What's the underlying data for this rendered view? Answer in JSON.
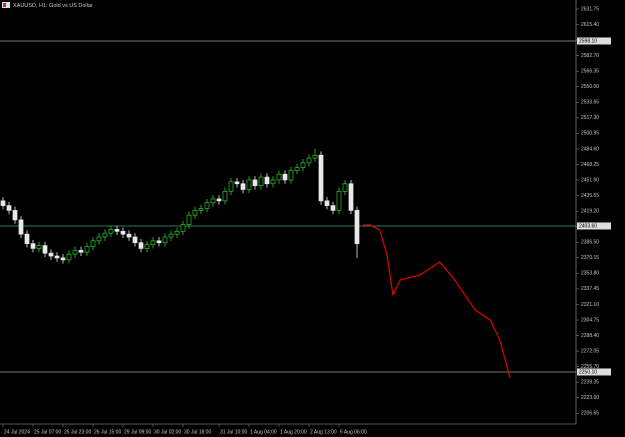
{
  "chart_data": {
    "type": "candlestick",
    "title": "XAUUSD, H1: Gold vs US Dollar",
    "up_color": "#2fc42f",
    "down_color": "#e8e8e8",
    "open": [
      2430,
      2425,
      2420,
      2410,
      2395,
      2385,
      2380,
      2383,
      2375,
      2372,
      2370,
      2368,
      2374,
      2378,
      2376,
      2382,
      2388,
      2392,
      2396,
      2400,
      2398,
      2395,
      2392,
      2386,
      2380,
      2384,
      2388,
      2386,
      2392,
      2395,
      2398,
      2405,
      2415,
      2420,
      2422,
      2428,
      2432,
      2430,
      2440,
      2450,
      2448,
      2442,
      2452,
      2446,
      2455,
      2448,
      2452,
      2458,
      2452,
      2462,
      2465,
      2470,
      2475,
      2478,
      2430,
      2425,
      2420,
      2440,
      2448,
      2420
    ],
    "high": [
      2434,
      2429,
      2424,
      2414,
      2399,
      2389,
      2387,
      2387,
      2379,
      2376,
      2374,
      2378,
      2382,
      2382,
      2386,
      2392,
      2396,
      2400,
      2404,
      2404,
      2402,
      2399,
      2396,
      2390,
      2388,
      2392,
      2392,
      2396,
      2399,
      2402,
      2409,
      2419,
      2424,
      2426,
      2432,
      2436,
      2436,
      2444,
      2454,
      2454,
      2452,
      2456,
      2456,
      2459,
      2459,
      2456,
      2462,
      2462,
      2466,
      2469,
      2474,
      2479,
      2485,
      2482,
      2434,
      2429,
      2444,
      2452,
      2452,
      2424
    ],
    "low": [
      2421,
      2416,
      2406,
      2391,
      2381,
      2376,
      2376,
      2371,
      2368,
      2366,
      2364,
      2364,
      2370,
      2372,
      2372,
      2378,
      2384,
      2388,
      2392,
      2394,
      2391,
      2388,
      2382,
      2376,
      2376,
      2380,
      2382,
      2382,
      2388,
      2391,
      2394,
      2401,
      2411,
      2416,
      2418,
      2424,
      2426,
      2426,
      2436,
      2444,
      2438,
      2438,
      2442,
      2442,
      2444,
      2444,
      2448,
      2448,
      2448,
      2458,
      2461,
      2466,
      2471,
      2426,
      2421,
      2416,
      2416,
      2436,
      2416,
      2370
    ],
    "close": [
      2425,
      2420,
      2410,
      2395,
      2385,
      2380,
      2383,
      2375,
      2372,
      2370,
      2368,
      2374,
      2378,
      2376,
      2382,
      2388,
      2392,
      2396,
      2400,
      2398,
      2395,
      2392,
      2386,
      2380,
      2384,
      2388,
      2386,
      2392,
      2395,
      2398,
      2405,
      2415,
      2420,
      2422,
      2428,
      2432,
      2430,
      2440,
      2450,
      2448,
      2442,
      2452,
      2446,
      2455,
      2448,
      2452,
      2458,
      2452,
      2462,
      2465,
      2470,
      2475,
      2478,
      2430,
      2425,
      2420,
      2440,
      2448,
      2420,
      2385
    ],
    "forecast": {
      "color": "#e00000",
      "x": [
        60,
        61.2,
        62.8,
        64,
        65,
        66.2,
        69.5,
        72.8,
        75.3,
        78.7,
        81.2,
        82.8,
        84.5
      ],
      "y": [
        2404.6,
        2404.6,
        2399.4,
        2373.1,
        2331.0,
        2346.8,
        2352.1,
        2365.8,
        2346.8,
        2315.3,
        2304.8,
        2283.7,
        2243.8
      ]
    },
    "levels": [
      {
        "value": 2598.1,
        "label": "2598.10",
        "color": "#9a9a9a"
      },
      {
        "value": 2403.6,
        "label": "2403.60",
        "color": "#3fa08a"
      },
      {
        "value": 2250.1,
        "label": "2250.10",
        "color": "#9a9a9a"
      }
    ],
    "xlim": [
      -0.5,
      95.5
    ],
    "xticks": [
      {
        "value": 0,
        "label": "24 Jul 2024"
      },
      {
        "value": 5,
        "label": "25 Jul 07:00"
      },
      {
        "value": 10,
        "label": "25 Jul 23:00"
      },
      {
        "value": 15,
        "label": "26 Jul 15:00"
      },
      {
        "value": 20,
        "label": "29 Jul 09:00"
      },
      {
        "value": 25,
        "label": "30 Jul 02:00"
      },
      {
        "value": 30,
        "label": "30 Jul 18:00"
      },
      {
        "value": 36,
        "label": "31 Jul 10:00"
      },
      {
        "value": 41,
        "label": "1 Aug 04:00"
      },
      {
        "value": 46,
        "label": "1 Aug 20:00"
      },
      {
        "value": 51,
        "label": "2 Aug 13:00"
      },
      {
        "value": 56,
        "label": "5 Aug 06:00"
      }
    ],
    "ylim": [
      2195.4,
      2641.2
    ],
    "yticks": [
      2206.65,
      {
        "value": 2223,
        "label": "2223.00"
      },
      2239.35,
      {
        "value": 2255.7,
        "label": "2255.70"
      },
      2272.05,
      {
        "value": 2288.4,
        "label": "2288.40"
      },
      2304.75,
      {
        "value": 2321.1,
        "label": "2321.10"
      },
      2337.45,
      {
        "value": 2353.8,
        "label": "2353.80"
      },
      2370.15,
      {
        "value": 2386.5,
        "label": "2386.50"
      },
      2402.85,
      {
        "value": 2419.2,
        "label": "2419.20"
      },
      2435.55,
      {
        "value": 2451.9,
        "label": "2451.90"
      },
      2468.25,
      {
        "value": 2484.6,
        "label": "2484.60"
      },
      2500.95,
      {
        "value": 2517.3,
        "label": "2517.30"
      },
      2533.65,
      {
        "value": 2550,
        "label": "2550.00"
      },
      2566.35,
      {
        "value": 2582.7,
        "label": "2582.70"
      },
      2599.05,
      {
        "value": 2615.4,
        "label": "2615.40"
      },
      2631.75
    ]
  }
}
